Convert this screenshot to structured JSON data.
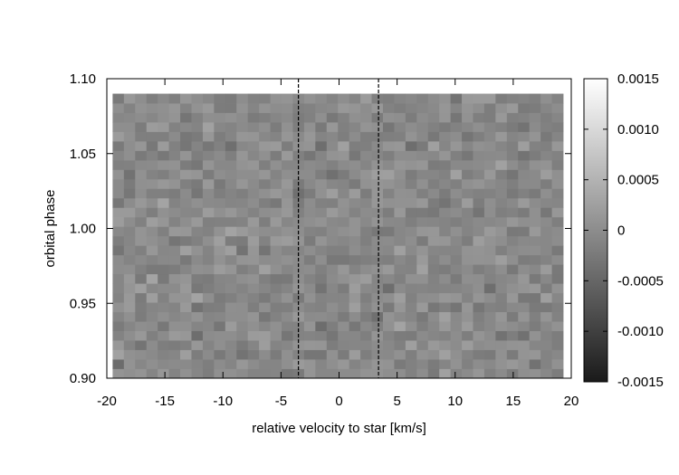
{
  "chart_data": {
    "type": "heatmap",
    "title": "",
    "xlabel": "relative velocity to star [km/s]",
    "ylabel": "orbital phase",
    "xlim": [
      -20,
      20
    ],
    "ylim": [
      0.9,
      1.1
    ],
    "data_extent": {
      "x": [
        -19.5,
        19.3
      ],
      "y": [
        0.9,
        1.09
      ]
    },
    "grid": {
      "nx": 40,
      "ny": 30
    },
    "x_ticks": [
      {
        "value": -20,
        "label": "-20"
      },
      {
        "value": -15,
        "label": "-15"
      },
      {
        "value": -10,
        "label": "-10"
      },
      {
        "value": -5,
        "label": "-5"
      },
      {
        "value": 0,
        "label": "0"
      },
      {
        "value": 5,
        "label": "5"
      },
      {
        "value": 10,
        "label": "10"
      },
      {
        "value": 15,
        "label": "15"
      },
      {
        "value": 20,
        "label": "20"
      }
    ],
    "y_ticks": [
      {
        "value": 0.9,
        "label": "0.90"
      },
      {
        "value": 0.95,
        "label": "0.95"
      },
      {
        "value": 1.0,
        "label": "1.00"
      },
      {
        "value": 1.05,
        "label": "1.05"
      },
      {
        "value": 1.1,
        "label": "1.10"
      }
    ],
    "colorbar": {
      "range": [
        -0.0015,
        0.0015
      ],
      "colors": [
        "#1a1a1a",
        "#ffffff"
      ],
      "ticks": [
        {
          "value": 0.0015,
          "label": "0.0015"
        },
        {
          "value": 0.001,
          "label": "0.0010"
        },
        {
          "value": 0.0005,
          "label": "0.0005"
        },
        {
          "value": 0,
          "label": "0"
        },
        {
          "value": -0.0005,
          "label": "-0.0005"
        },
        {
          "value": -0.001,
          "label": "-0.0010"
        },
        {
          "value": -0.0015,
          "label": "-0.0015"
        }
      ]
    },
    "noise": {
      "mean": -5e-05,
      "amplitude": 0.00028
    },
    "vertical_lines": [
      {
        "x": -3.5,
        "style": "dashed",
        "color": "#000000"
      },
      {
        "x": 3.4,
        "style": "dashed",
        "color": "#000000"
      }
    ]
  }
}
